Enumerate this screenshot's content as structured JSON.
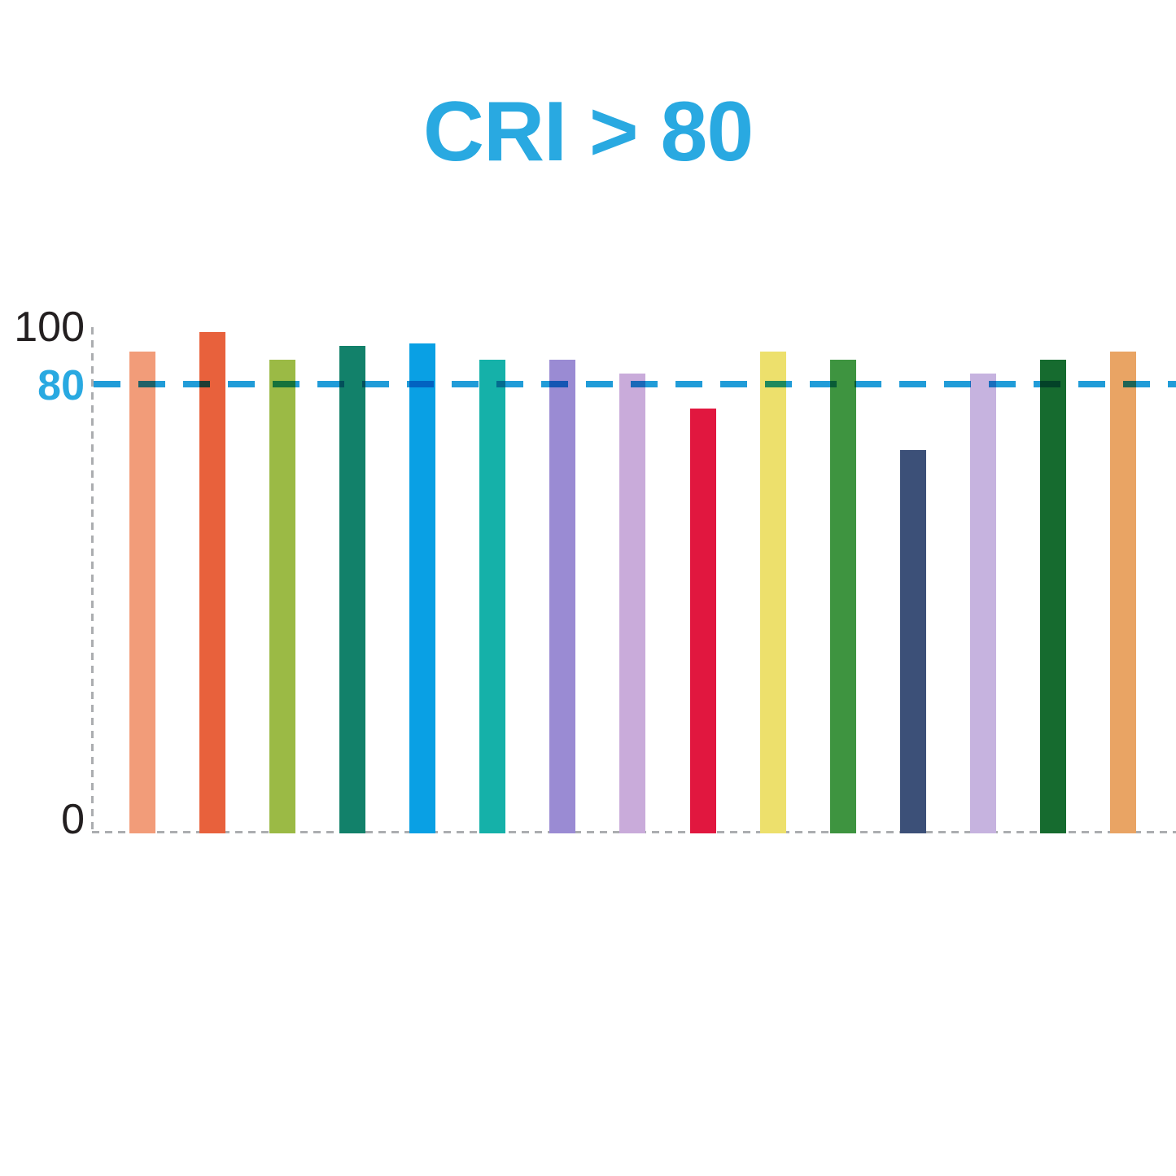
{
  "title": {
    "text": "CRI > 80",
    "color": "#29A9E1"
  },
  "axis": {
    "yticks": [
      "100",
      "80",
      "0"
    ],
    "tick_color": "#231F20",
    "tick_80_color": "#29A9E1",
    "dashed_axis_color": "#ABADB0"
  },
  "chart_data": {
    "type": "bar",
    "title": "CRI > 80",
    "values": [
      92,
      99,
      89,
      94,
      95,
      89,
      89,
      84,
      71,
      92,
      89,
      56,
      84,
      89,
      92
    ],
    "bar_colors": [
      "#F29C79",
      "#E8613C",
      "#9BBA45",
      "#12816A",
      "#09A0E4",
      "#15B1A9",
      "#9A8BD3",
      "#C9ABDA",
      "#E1173F",
      "#EDE06C",
      "#3E9440",
      "#3C5078",
      "#C6B3DF",
      "#166B2F",
      "#E9A464"
    ],
    "xlabel": "",
    "ylabel": "",
    "ytick_labels": [
      "100",
      "80",
      "0"
    ],
    "ylim": [
      0,
      100
    ],
    "grid": false,
    "legend": false,
    "reference_line": {
      "y": 80,
      "label": "80",
      "color": "#219CD8",
      "style": "dashed"
    }
  }
}
